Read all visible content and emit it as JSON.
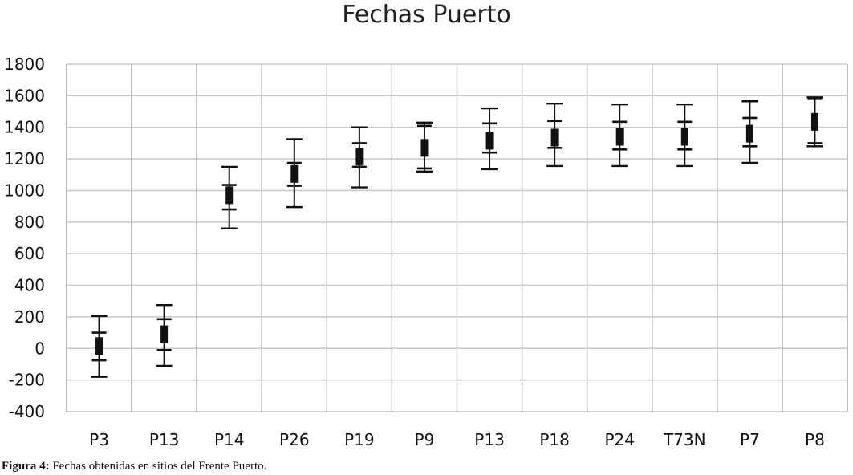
{
  "chart_data": {
    "type": "scatter",
    "title": "Fechas Puerto",
    "xlabel": "",
    "ylabel": "",
    "ylim": [
      -400,
      1800
    ],
    "yticks": [
      -400,
      -200,
      0,
      200,
      400,
      600,
      800,
      1000,
      1200,
      1400,
      1600,
      1800
    ],
    "grid": true,
    "categories": [
      "P3",
      "P13",
      "P14",
      "P26",
      "P19",
      "P9",
      "P13",
      "P18",
      "P24",
      "T73N",
      "P7",
      "P8"
    ],
    "series": [
      {
        "type": "median",
        "values": [
          15,
          90,
          970,
          1105,
          1215,
          1270,
          1315,
          1335,
          1340,
          1340,
          1360,
          1435
        ]
      },
      {
        "type": "range_1sigma",
        "low": [
          -75,
          -10,
          880,
          1030,
          1150,
          1140,
          1240,
          1270,
          1260,
          1260,
          1280,
          1300
        ],
        "high": [
          100,
          185,
          1035,
          1175,
          1300,
          1410,
          1425,
          1440,
          1435,
          1435,
          1460,
          1580
        ]
      },
      {
        "type": "range_2sigma",
        "low": [
          -180,
          -110,
          760,
          895,
          1020,
          1120,
          1135,
          1155,
          1155,
          1155,
          1175,
          1280
        ],
        "high": [
          205,
          275,
          1150,
          1325,
          1400,
          1430,
          1520,
          1550,
          1545,
          1545,
          1565,
          1590
        ]
      }
    ]
  },
  "caption": {
    "label": "Figura 4:",
    "text": "Fechas obtenidas en sitios del Frente Puerto."
  }
}
